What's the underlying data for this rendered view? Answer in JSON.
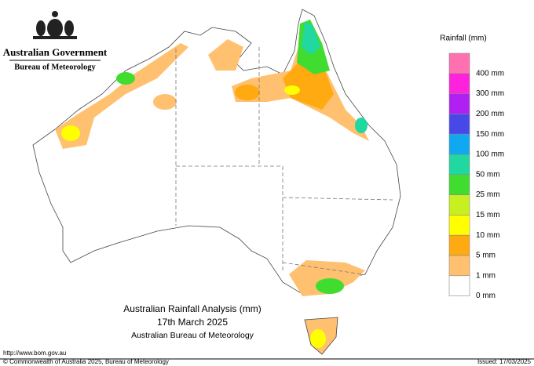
{
  "header": {
    "agency": "Australian Government",
    "bureau": "Bureau of Meteorology"
  },
  "legend": {
    "title": "Rainfall (mm)",
    "colors": [
      "#ff70b0",
      "#ff22dd",
      "#b020f0",
      "#4848e8",
      "#10a8f0",
      "#20d8a0",
      "#40dd30",
      "#c8f020",
      "#ffff00",
      "#ffaa10",
      "#ffc070",
      "#ffffff"
    ],
    "labels": [
      "400 mm",
      "300 mm",
      "200 mm",
      "150 mm",
      "100 mm",
      "50 mm",
      "25 mm",
      "15 mm",
      "10 mm",
      "5 mm",
      "1 mm",
      "0 mm"
    ]
  },
  "map_title": {
    "line1": "Australian Rainfall Analysis (mm)",
    "line2": "17th March 2025",
    "line3": "Australian Bureau of Meteorology"
  },
  "footer": {
    "url": "http://www.bom.gov.au",
    "copyright": "© Commonwealth of Australia 2025, Bureau of Meteorology",
    "issued": "Issued: 17/03/2025"
  }
}
